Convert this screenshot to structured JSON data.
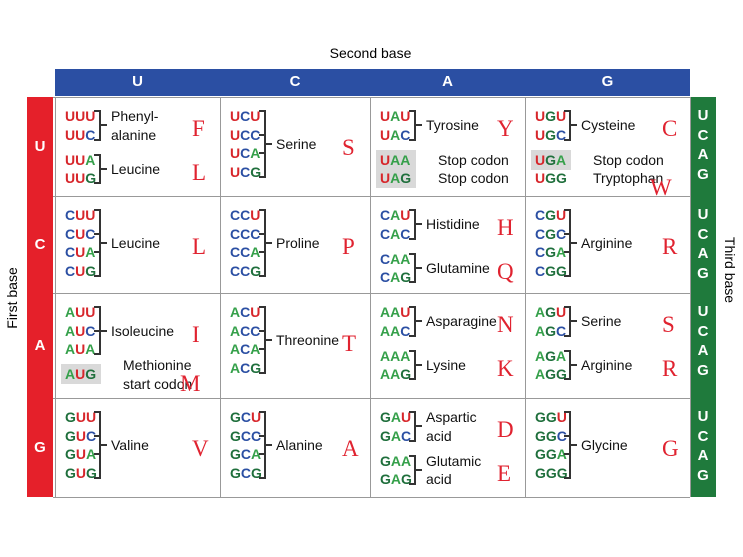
{
  "header": {
    "second_base": "Second base",
    "first_base": "First base",
    "third_base": "Third base"
  },
  "columns": [
    "U",
    "C",
    "A",
    "G"
  ],
  "third_bases": [
    "U",
    "C",
    "A",
    "G"
  ],
  "base_colors": {
    "U": "#d7262b",
    "C": "#2b4fa3",
    "A": "#35a04a",
    "G": "#1f6f3c"
  },
  "rows": [
    {
      "base": "U",
      "cells": [
        {
          "groups": [
            {
              "codons": [
                "UUU",
                "UUC"
              ],
              "label": [
                "Phenyl-",
                "alanine"
              ],
              "bracket": true,
              "code": "F"
            },
            {
              "codons": [
                "UUA",
                "UUG"
              ],
              "label": [
                "Leucine"
              ],
              "bracket": true,
              "code": "L"
            }
          ]
        },
        {
          "groups": [
            {
              "codons": [
                "UCU",
                "UCC",
                "UCA",
                "UCG"
              ],
              "label": [
                "Serine"
              ],
              "bracket": true,
              "code": "S"
            }
          ]
        },
        {
          "groups": [
            {
              "codons": [
                "UAU",
                "UAC"
              ],
              "label": [
                "Tyrosine"
              ],
              "bracket": true,
              "code": "Y"
            },
            {
              "codons": [
                "UAA"
              ],
              "label": [
                "Stop codon"
              ],
              "bracket": false,
              "highlight": true
            },
            {
              "codons": [
                "UAG"
              ],
              "label": [
                "Stop codon"
              ],
              "bracket": false,
              "highlight": true
            }
          ]
        },
        {
          "groups": [
            {
              "codons": [
                "UGU",
                "UGC"
              ],
              "label": [
                "Cysteine"
              ],
              "bracket": true,
              "code": "C"
            },
            {
              "codons": [
                "UGA"
              ],
              "label": [
                "Stop codon"
              ],
              "bracket": false,
              "highlight": true
            },
            {
              "codons": [
                "UGG"
              ],
              "label": [
                "Tryptophan"
              ],
              "bracket": false,
              "code": "W"
            }
          ]
        }
      ]
    },
    {
      "base": "C",
      "cells": [
        {
          "groups": [
            {
              "codons": [
                "CUU",
                "CUC",
                "CUA",
                "CUG"
              ],
              "label": [
                "Leucine"
              ],
              "bracket": true,
              "code": "L"
            }
          ]
        },
        {
          "groups": [
            {
              "codons": [
                "CCU",
                "CCC",
                "CCA",
                "CCG"
              ],
              "label": [
                "Proline"
              ],
              "bracket": true,
              "code": "P"
            }
          ]
        },
        {
          "groups": [
            {
              "codons": [
                "CAU",
                "CAC"
              ],
              "label": [
                "Histidine"
              ],
              "bracket": true,
              "code": "H"
            },
            {
              "codons": [
                "CAA",
                "CAG"
              ],
              "label": [
                "Glutamine"
              ],
              "bracket": true,
              "code": "Q"
            }
          ]
        },
        {
          "groups": [
            {
              "codons": [
                "CGU",
                "CGC",
                "CGA",
                "CGG"
              ],
              "label": [
                "Arginine"
              ],
              "bracket": true,
              "code": "R"
            }
          ]
        }
      ]
    },
    {
      "base": "A",
      "cells": [
        {
          "groups": [
            {
              "codons": [
                "AUU",
                "AUC",
                "AUA"
              ],
              "label": [
                "Isoleucine"
              ],
              "bracket": true,
              "code": "I"
            },
            {
              "codons": [
                "AUG"
              ],
              "label": [
                "Methionine",
                "start codon"
              ],
              "bracket": false,
              "highlight": true,
              "code": "M"
            }
          ]
        },
        {
          "groups": [
            {
              "codons": [
                "ACU",
                "ACC",
                "ACA",
                "ACG"
              ],
              "label": [
                "Threonine"
              ],
              "bracket": true,
              "code": "T"
            }
          ]
        },
        {
          "groups": [
            {
              "codons": [
                "AAU",
                "AAC"
              ],
              "label": [
                "Asparagine"
              ],
              "bracket": true,
              "code": "N"
            },
            {
              "codons": [
                "AAA",
                "AAG"
              ],
              "label": [
                "Lysine"
              ],
              "bracket": true,
              "code": "K"
            }
          ]
        },
        {
          "groups": [
            {
              "codons": [
                "AGU",
                "AGC"
              ],
              "label": [
                "Serine"
              ],
              "bracket": true,
              "code": "S"
            },
            {
              "codons": [
                "AGA",
                "AGG"
              ],
              "label": [
                "Arginine"
              ],
              "bracket": true,
              "code": "R"
            }
          ]
        }
      ]
    },
    {
      "base": "G",
      "cells": [
        {
          "groups": [
            {
              "codons": [
                "GUU",
                "GUC",
                "GUA",
                "GUG"
              ],
              "label": [
                "Valine"
              ],
              "bracket": true,
              "code": "V"
            }
          ]
        },
        {
          "groups": [
            {
              "codons": [
                "GCU",
                "GCC",
                "GCA",
                "GCG"
              ],
              "label": [
                "Alanine"
              ],
              "bracket": true,
              "code": "A"
            }
          ]
        },
        {
          "groups": [
            {
              "codons": [
                "GAU",
                "GAC"
              ],
              "label": [
                "Aspartic",
                "acid"
              ],
              "bracket": true,
              "code": "D"
            },
            {
              "codons": [
                "GAA",
                "GAG"
              ],
              "label": [
                "Glutamic",
                "acid"
              ],
              "bracket": true,
              "code": "E"
            }
          ]
        },
        {
          "groups": [
            {
              "codons": [
                "GGU",
                "GGC",
                "GGA",
                "GGG"
              ],
              "label": [
                "Glycine"
              ],
              "bracket": true,
              "code": "G"
            }
          ]
        }
      ]
    }
  ]
}
